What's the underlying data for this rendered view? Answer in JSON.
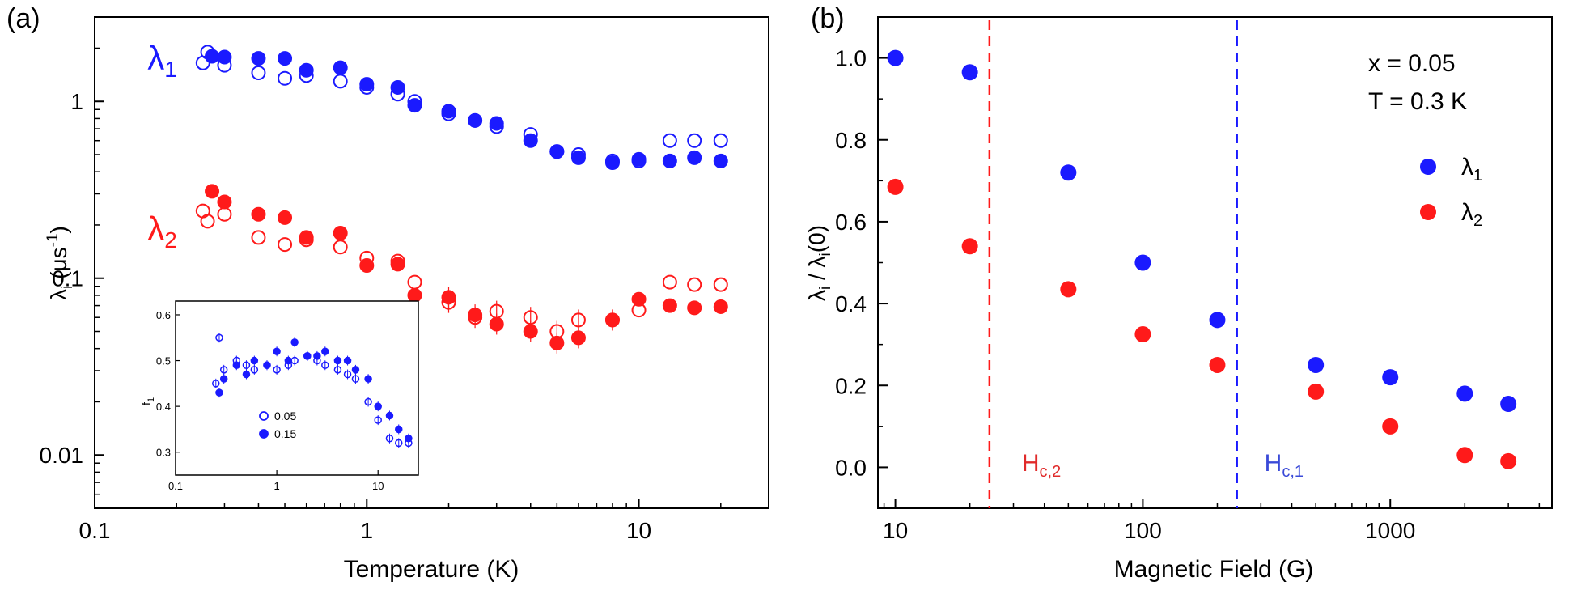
{
  "panel_labels": {
    "a": "(a)",
    "b": "(b)"
  },
  "colors": {
    "blue": "#1a1aff",
    "red": "#ff1a1a",
    "axis": "#000000",
    "line_blue": "#2a2ae0",
    "line_red": "#e02a2a"
  },
  "chart_data": [
    {
      "id": "a",
      "type": "scatter",
      "xlabel": "Temperature (K)",
      "ylabel_base": "λ",
      "ylabel_sub": "i",
      "ylabel_rest": " (μs",
      "ylabel_sup": "-1",
      "ylabel_close": ")",
      "xscale": "log",
      "yscale": "log",
      "xlim": [
        0.1,
        30
      ],
      "ylim": [
        0.005,
        3
      ],
      "xticks": [
        0.1,
        1,
        10
      ],
      "xtick_labels": [
        "0.1",
        "1",
        "10"
      ],
      "yticks": [
        0.01,
        0.1,
        1
      ],
      "ytick_labels": [
        "0.01",
        "0.1",
        "1"
      ],
      "annotations": [
        {
          "id": "lam1",
          "base": "λ",
          "sub": "1",
          "color": "blue",
          "x": 0.2,
          "y": 1.75
        },
        {
          "id": "lam2",
          "base": "λ",
          "sub": "2",
          "color": "red",
          "x": 0.2,
          "y": 0.19
        }
      ],
      "series": [
        {
          "name": "λ1 x=0.05",
          "color": "blue",
          "filled": false,
          "x": [
            0.25,
            0.26,
            0.3,
            0.4,
            0.5,
            0.6,
            0.8,
            1.0,
            1.3,
            1.5,
            2.0,
            2.5,
            3.0,
            4.0,
            5.0,
            6.0,
            8.0,
            10.0,
            13.0,
            16.0,
            20.0
          ],
          "y": [
            1.65,
            1.9,
            1.6,
            1.45,
            1.35,
            1.4,
            1.3,
            1.2,
            1.1,
            1.0,
            0.85,
            0.78,
            0.72,
            0.65,
            0.52,
            0.5,
            0.46,
            0.46,
            0.6,
            0.6,
            0.6
          ]
        },
        {
          "name": "λ1 x=0.15",
          "color": "blue",
          "filled": true,
          "x": [
            0.27,
            0.3,
            0.4,
            0.5,
            0.6,
            0.8,
            1.0,
            1.3,
            1.5,
            2.0,
            2.5,
            3.0,
            4.0,
            5.0,
            6.0,
            8.0,
            10.0,
            13.0,
            16.0,
            20.0
          ],
          "y": [
            1.8,
            1.78,
            1.75,
            1.75,
            1.5,
            1.55,
            1.25,
            1.2,
            0.95,
            0.88,
            0.78,
            0.75,
            0.6,
            0.52,
            0.48,
            0.45,
            0.47,
            0.46,
            0.48,
            0.46
          ]
        },
        {
          "name": "λ2 x=0.05",
          "color": "red",
          "filled": false,
          "x": [
            0.25,
            0.26,
            0.3,
            0.4,
            0.5,
            0.6,
            0.8,
            1.0,
            1.3,
            1.5,
            2.0,
            2.5,
            3.0,
            4.0,
            5.0,
            6.0,
            8.0,
            10.0,
            13.0,
            16.0,
            20.0
          ],
          "y": [
            0.24,
            0.21,
            0.23,
            0.17,
            0.155,
            0.165,
            0.15,
            0.13,
            0.125,
            0.095,
            0.073,
            0.06,
            0.065,
            0.06,
            0.05,
            0.058,
            0.058,
            0.066,
            0.095,
            0.092,
            0.092
          ]
        },
        {
          "name": "λ2 x=0.15",
          "color": "red",
          "filled": true,
          "x": [
            0.27,
            0.3,
            0.4,
            0.5,
            0.6,
            0.8,
            1.0,
            1.3,
            1.5,
            2.0,
            2.5,
            3.0,
            4.0,
            5.0,
            6.0,
            8.0,
            10.0,
            13.0,
            16.0,
            20.0
          ],
          "y": [
            0.31,
            0.27,
            0.23,
            0.22,
            0.17,
            0.18,
            0.118,
            0.12,
            0.08,
            0.078,
            0.062,
            0.055,
            0.05,
            0.043,
            0.046,
            0.058,
            0.076,
            0.07,
            0.068,
            0.069
          ]
        }
      ],
      "inset": {
        "ylabel": "f",
        "ylabel_sub": "1",
        "xscale": "log",
        "xlim": [
          0.1,
          25
        ],
        "ylim": [
          0.25,
          0.63
        ],
        "xticks": [
          0.1,
          1,
          10
        ],
        "xtick_labels": [
          "0.1",
          "1",
          "10"
        ],
        "yticks": [
          0.3,
          0.4,
          0.5,
          0.6
        ],
        "ytick_labels": [
          "0.3",
          "0.4",
          "0.5",
          "0.6"
        ],
        "legend": [
          {
            "label": "0.05",
            "filled": false
          },
          {
            "label": "0.15",
            "filled": true
          }
        ],
        "series": [
          {
            "name": "0.05",
            "color": "blue",
            "filled": false,
            "x": [
              0.25,
              0.27,
              0.3,
              0.4,
              0.5,
              0.6,
              0.8,
              1.0,
              1.3,
              1.5,
              2.0,
              2.5,
              3.0,
              4.0,
              5.0,
              6.0,
              8.0,
              10.0,
              13.0,
              16.0,
              20.0
            ],
            "y": [
              0.45,
              0.55,
              0.48,
              0.5,
              0.49,
              0.48,
              0.49,
              0.48,
              0.49,
              0.5,
              0.51,
              0.5,
              0.49,
              0.48,
              0.47,
              0.46,
              0.41,
              0.37,
              0.33,
              0.32,
              0.32
            ]
          },
          {
            "name": "0.15",
            "color": "blue",
            "filled": true,
            "x": [
              0.27,
              0.3,
              0.4,
              0.5,
              0.6,
              0.8,
              1.0,
              1.3,
              1.5,
              2.0,
              2.5,
              3.0,
              4.0,
              5.0,
              6.0,
              8.0,
              10.0,
              13.0,
              16.0,
              20.0
            ],
            "y": [
              0.43,
              0.46,
              0.49,
              0.47,
              0.5,
              0.49,
              0.52,
              0.5,
              0.54,
              0.51,
              0.51,
              0.52,
              0.5,
              0.5,
              0.48,
              0.46,
              0.4,
              0.38,
              0.35,
              0.33
            ]
          }
        ]
      }
    },
    {
      "id": "b",
      "type": "scatter",
      "xlabel": "Magnetic Field (G)",
      "ylabel_parts": [
        "λ",
        "i",
        " / λ",
        "i",
        "(0)"
      ],
      "xscale": "log",
      "yscale": "linear",
      "xlim": [
        8.5,
        4500
      ],
      "ylim": [
        -0.1,
        1.1
      ],
      "xticks": [
        10,
        100,
        1000
      ],
      "xtick_labels": [
        "10",
        "100",
        "1000"
      ],
      "yticks": [
        0.0,
        0.2,
        0.4,
        0.6,
        0.8,
        1.0
      ],
      "ytick_labels": [
        "0.0",
        "0.2",
        "0.4",
        "0.6",
        "0.8",
        "1.0"
      ],
      "text_lines": [
        "x = 0.05",
        "T = 0.3 K"
      ],
      "legend": [
        {
          "base": "λ",
          "sub": "1",
          "color": "blue"
        },
        {
          "base": "λ",
          "sub": "2",
          "color": "red"
        }
      ],
      "vlines": [
        {
          "x": 24,
          "color": "red",
          "label_base": "H",
          "label_sub": "c,2"
        },
        {
          "x": 240,
          "color": "blue",
          "label_base": "H",
          "label_sub": "c,1"
        }
      ],
      "series": [
        {
          "name": "λ1",
          "color": "blue",
          "x": [
            10,
            20,
            50,
            100,
            200,
            500,
            1000,
            2000,
            3000
          ],
          "y": [
            1.0,
            0.965,
            0.72,
            0.5,
            0.36,
            0.25,
            0.22,
            0.18,
            0.155
          ]
        },
        {
          "name": "λ2",
          "color": "red",
          "x": [
            10,
            20,
            50,
            100,
            200,
            500,
            1000,
            2000,
            3000
          ],
          "y": [
            0.685,
            0.54,
            0.435,
            0.325,
            0.25,
            0.185,
            0.1,
            0.03,
            0.015
          ]
        }
      ]
    }
  ]
}
